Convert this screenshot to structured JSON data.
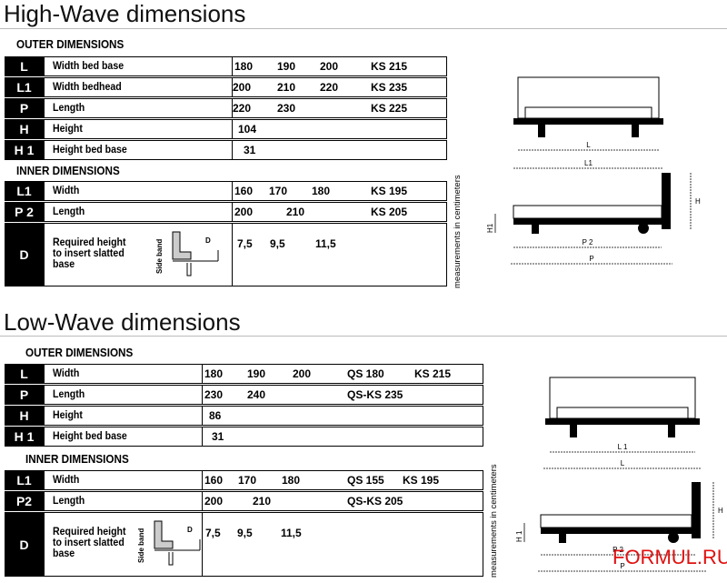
{
  "sections": [
    {
      "title": "High-Wave dimensions",
      "outer_heading": "OUTER DIMENSIONS",
      "outer_rows": [
        {
          "code": "L",
          "label": "Width bed base",
          "cells": [
            "180",
            "190",
            "200",
            "KS 215"
          ]
        },
        {
          "code": "L1",
          "label": "Width bedhead",
          "cells": [
            "200",
            "210",
            "220",
            "KS 235"
          ]
        },
        {
          "code": "P",
          "label": "Length",
          "cells": [
            "220",
            "230",
            "KS 225"
          ]
        },
        {
          "code": "H",
          "label": "Height",
          "cells": [
            "104"
          ]
        },
        {
          "code": "H 1",
          "label": "Height bed base",
          "cells": [
            "31"
          ]
        }
      ],
      "inner_heading": "INNER DIMENSIONS",
      "inner_rows": [
        {
          "code": "L1",
          "label": "Width",
          "cells": [
            "160",
            "170",
            "180",
            "KS 195"
          ]
        },
        {
          "code": "P 2",
          "label": "Length",
          "cells": [
            "200",
            "210",
            "KS 205"
          ]
        },
        {
          "code": "D",
          "label": "Required height\nto insert slatted\nbase",
          "cells": [
            "7,5",
            "9,5",
            "11,5"
          ]
        }
      ],
      "side_band": "Side band",
      "side_band_d": "D",
      "note": "measurements in centimeters",
      "diagram": {
        "top": [
          "L",
          "L1"
        ],
        "side": [
          "H",
          "H1",
          "P 2",
          "P"
        ]
      }
    },
    {
      "title": "Low-Wave dimensions",
      "outer_heading": "OUTER DIMENSIONS",
      "outer_rows": [
        {
          "code": "L",
          "label": "Width",
          "cells": [
            "180",
            "190",
            "200",
            "QS 180",
            "KS 215"
          ]
        },
        {
          "code": "P",
          "label": "Length",
          "cells": [
            "230",
            "240",
            "QS-KS 235"
          ]
        },
        {
          "code": "H",
          "label": "Height",
          "cells": [
            "86"
          ]
        },
        {
          "code": "H 1",
          "label": "Height bed base",
          "cells": [
            "31"
          ]
        }
      ],
      "inner_heading": "INNER DIMENSIONS",
      "inner_rows": [
        {
          "code": "L1",
          "label": "Width",
          "cells": [
            "160",
            "170",
            "180",
            "QS 155",
            "KS 195"
          ]
        },
        {
          "code": "P2",
          "label": "Length",
          "cells": [
            "200",
            "210",
            "QS-KS 205"
          ]
        },
        {
          "code": "D",
          "label": "Required height\nto insert slatted\nbase",
          "cells": [
            "7,5",
            "9,5",
            "11,5"
          ]
        }
      ],
      "side_band": "Side band",
      "side_band_d": "D",
      "note": "measurements in centimeters",
      "diagram": {
        "top": [
          "L 1",
          "L"
        ],
        "side": [
          "H",
          "H 1",
          "P 2",
          "P"
        ]
      }
    }
  ],
  "watermark": "FORMUL.RU"
}
